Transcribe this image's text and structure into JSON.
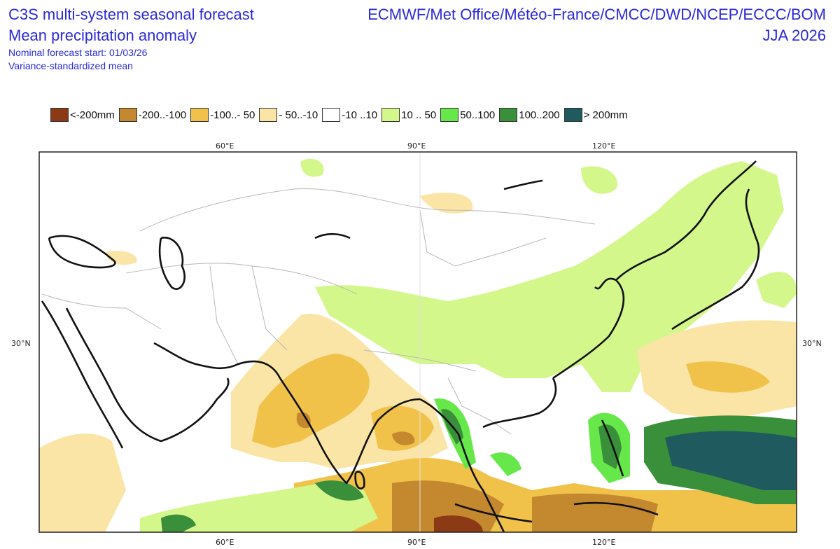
{
  "header": {
    "title_line1": "C3S multi-system seasonal forecast",
    "title_line2": "Mean precipitation anomaly",
    "subtitle_line1": "Nominal forecast start: 01/03/26",
    "subtitle_line2": "Variance-standardized mean",
    "providers": "ECMWF/Met Office/Météo-France/CMCC/DWD/NCEP/ECCC/BOM",
    "season": "JJA 2026"
  },
  "legend": [
    {
      "label": "<-200mm",
      "color": "#8c3a16"
    },
    {
      "label": "-200..-100",
      "color": "#c4882e"
    },
    {
      "label": "-100..- 50",
      "color": "#f0c24a"
    },
    {
      "label": "- 50..-10",
      "color": "#fae5a6"
    },
    {
      "label": "-10 ..10",
      "color": "#ffffff"
    },
    {
      "label": "10 .. 50",
      "color": "#d4f78c"
    },
    {
      "label": "50..100",
      "color": "#66e84a"
    },
    {
      "label": "100..200",
      "color": "#3a8f3a"
    },
    {
      "label": "> 200mm",
      "color": "#1f5a5e"
    }
  ],
  "axes": {
    "top_ticks": [
      "60°E",
      "90°E",
      "120°E"
    ],
    "bottom_ticks": [
      "60°E",
      "90°E",
      "120°E"
    ],
    "left_ticks": [
      "30°N"
    ],
    "right_ticks": [
      "30°N"
    ]
  }
}
